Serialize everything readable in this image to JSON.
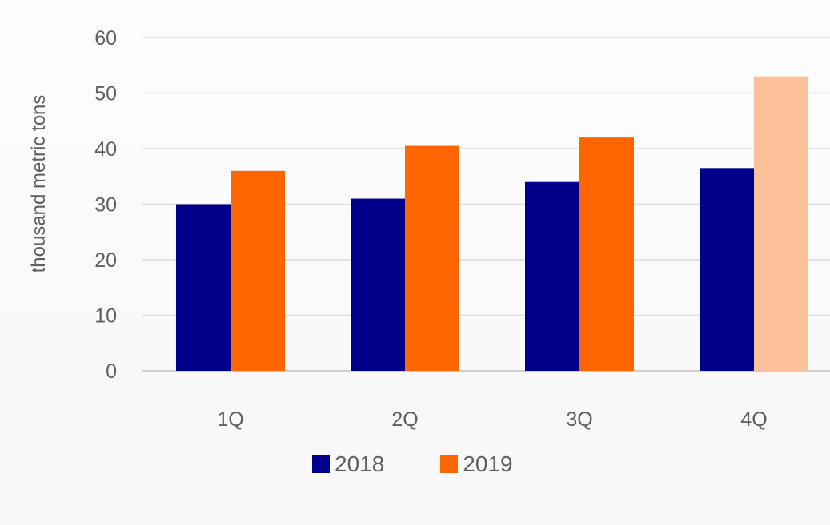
{
  "chart_data": {
    "type": "bar",
    "title": "",
    "xlabel": "",
    "ylabel": "thousand metric tons",
    "ylim": [
      0,
      60
    ],
    "yticks": [
      0,
      10,
      20,
      30,
      40,
      50,
      60
    ],
    "categories": [
      "1Q",
      "2Q",
      "3Q",
      "4Q"
    ],
    "series": [
      {
        "name": "2018",
        "values": [
          30,
          31,
          34,
          36.5
        ],
        "color": "#00008b"
      },
      {
        "name": "2019",
        "values": [
          36,
          40.5,
          42,
          53
        ],
        "color": "#ff6600",
        "highlight_color": "#fcc09a"
      }
    ],
    "legend_position": "bottom",
    "grid": true
  },
  "colors": {
    "series_2018": "#00008b",
    "series_2019": "#ff6600",
    "series_2019_4q": "#fcc09a",
    "gridline": "#dddddd",
    "text": "#5f5f5f"
  }
}
